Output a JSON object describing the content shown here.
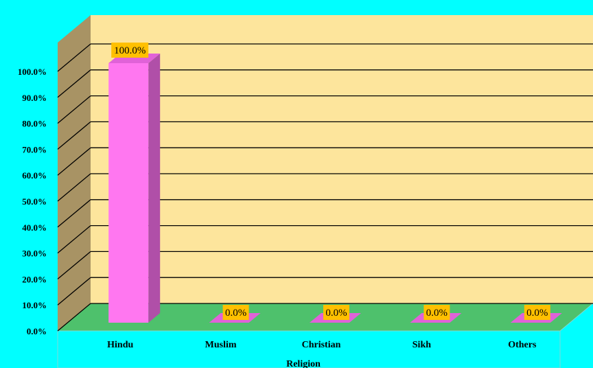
{
  "chart_data": {
    "type": "bar",
    "categories": [
      "Hindu",
      "Muslim",
      "Christian",
      "Sikh",
      "Others"
    ],
    "values": [
      100.0,
      0.0,
      0.0,
      0.0,
      0.0
    ],
    "data_labels": [
      "100.0%",
      "0.0%",
      "0.0%",
      "0.0%",
      "0.0%"
    ],
    "yticks": [
      "0.0%",
      "10.0%",
      "20.0%",
      "30.0%",
      "40.0%",
      "50.0%",
      "60.0%",
      "70.0%",
      "80.0%",
      "90.0%",
      "100.0%"
    ],
    "xlabel": "Religion",
    "ylabel": "",
    "title": "",
    "ylim": [
      0,
      100
    ],
    "grid": true,
    "style": "3d-column",
    "colors": {
      "background": "#00ffff",
      "back_wall": "#fde59c",
      "side_wall": "#a89364",
      "floor": "#4ec16c",
      "bar_front": "#ff77f0",
      "bar_side": "#b04fa8",
      "bar_top": "#e062d8",
      "label_box": "#ffc000"
    }
  }
}
